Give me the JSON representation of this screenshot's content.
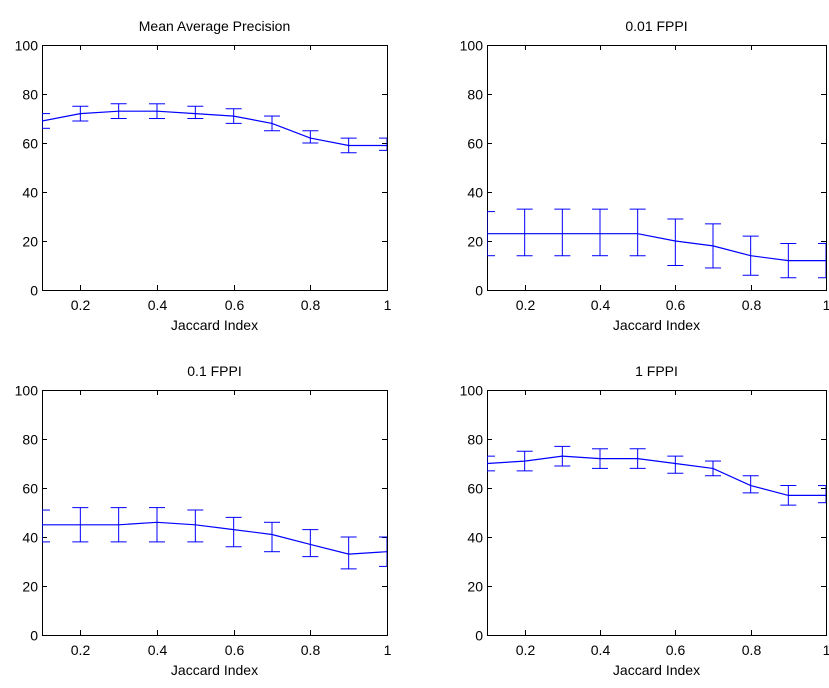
{
  "line_color": "#0000ff",
  "chart_data": [
    {
      "type": "line",
      "title": "Mean Average Precision",
      "xlabel": "Jaccard Index",
      "ylabel": "",
      "xlim": [
        0.1,
        1
      ],
      "ylim": [
        0,
        100
      ],
      "xticks": [
        "0.2",
        "0.4",
        "0.6",
        "0.8",
        "1"
      ],
      "yticks": [
        "0",
        "20",
        "40",
        "60",
        "80",
        "100"
      ],
      "x": [
        0.1,
        0.2,
        0.3,
        0.4,
        0.5,
        0.6,
        0.7,
        0.8,
        0.9,
        1.0
      ],
      "values": [
        69,
        72,
        73,
        73,
        72,
        71,
        68,
        62,
        59,
        59
      ],
      "err_low": [
        66,
        69,
        70,
        70,
        70,
        68,
        65,
        60,
        56,
        57
      ],
      "err_high": [
        72,
        75,
        76,
        76,
        75,
        74,
        71,
        65,
        62,
        62
      ],
      "grid": false,
      "legend": "none"
    },
    {
      "type": "line",
      "title": "0.01 FPPI",
      "xlabel": "Jaccard Index",
      "ylabel": "",
      "xlim": [
        0.1,
        1
      ],
      "ylim": [
        0,
        100
      ],
      "xticks": [
        "0.2",
        "0.4",
        "0.6",
        "0.8",
        "1"
      ],
      "yticks": [
        "0",
        "20",
        "40",
        "60",
        "80",
        "100"
      ],
      "x": [
        0.1,
        0.2,
        0.3,
        0.4,
        0.5,
        0.6,
        0.7,
        0.8,
        0.9,
        1.0
      ],
      "values": [
        23,
        23,
        23,
        23,
        23,
        20,
        18,
        14,
        12,
        12
      ],
      "err_low": [
        14,
        14,
        14,
        14,
        14,
        10,
        9,
        6,
        5,
        5
      ],
      "err_high": [
        32,
        33,
        33,
        33,
        33,
        29,
        27,
        22,
        19,
        19
      ],
      "grid": false,
      "legend": "none"
    },
    {
      "type": "line",
      "title": "0.1 FPPI",
      "xlabel": "Jaccard Index",
      "ylabel": "",
      "xlim": [
        0.1,
        1
      ],
      "ylim": [
        0,
        100
      ],
      "xticks": [
        "0.2",
        "0.4",
        "0.6",
        "0.8",
        "1"
      ],
      "yticks": [
        "0",
        "20",
        "40",
        "60",
        "80",
        "100"
      ],
      "x": [
        0.1,
        0.2,
        0.3,
        0.4,
        0.5,
        0.6,
        0.7,
        0.8,
        0.9,
        1.0
      ],
      "values": [
        45,
        45,
        45,
        46,
        45,
        43,
        41,
        37,
        33,
        34
      ],
      "err_low": [
        38,
        38,
        38,
        38,
        38,
        36,
        34,
        32,
        27,
        28
      ],
      "err_high": [
        51,
        52,
        52,
        52,
        51,
        48,
        46,
        43,
        40,
        40
      ],
      "grid": false,
      "legend": "none"
    },
    {
      "type": "line",
      "title": "1 FPPI",
      "xlabel": "Jaccard Index",
      "ylabel": "",
      "xlim": [
        0.1,
        1
      ],
      "ylim": [
        0,
        100
      ],
      "xticks": [
        "0.2",
        "0.4",
        "0.6",
        "0.8",
        "1"
      ],
      "yticks": [
        "0",
        "20",
        "40",
        "60",
        "80",
        "100"
      ],
      "x": [
        0.1,
        0.2,
        0.3,
        0.4,
        0.5,
        0.6,
        0.7,
        0.8,
        0.9,
        1.0
      ],
      "values": [
        70,
        71,
        73,
        72,
        72,
        70,
        68,
        61,
        57,
        57
      ],
      "err_low": [
        67,
        67,
        69,
        68,
        68,
        66,
        65,
        58,
        53,
        54
      ],
      "err_high": [
        73,
        75,
        77,
        76,
        76,
        73,
        71,
        65,
        61,
        61
      ],
      "grid": false,
      "legend": "none"
    }
  ]
}
